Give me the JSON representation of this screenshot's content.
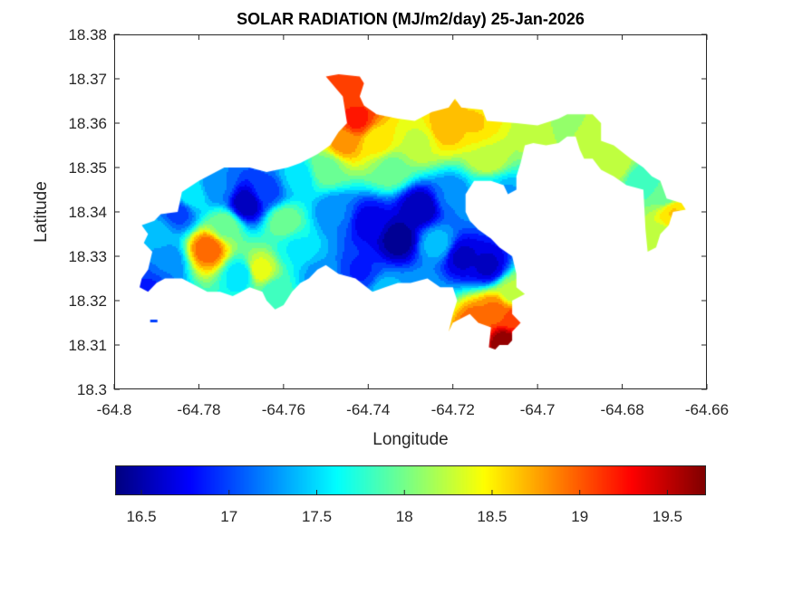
{
  "chart_data": {
    "type": "heatmap",
    "subtype": "filled-contour-map",
    "title": "SOLAR RADIATION (MJ/m2/day) 25-Jan-2026",
    "xlabel": "Longitude",
    "ylabel": "Latitude",
    "xlim": [
      -64.8,
      -64.66
    ],
    "ylim": [
      18.3,
      18.38
    ],
    "xticks": [
      -64.8,
      -64.78,
      -64.76,
      -64.74,
      -64.72,
      -64.7,
      -64.68,
      -64.66
    ],
    "xtick_labels": [
      "-64.8",
      "-64.78",
      "-64.76",
      "-64.74",
      "-64.72",
      "-64.7",
      "-64.68",
      "-64.66"
    ],
    "yticks": [
      18.3,
      18.31,
      18.32,
      18.33,
      18.34,
      18.35,
      18.36,
      18.37,
      18.38
    ],
    "ytick_labels": [
      "18.3",
      "18.31",
      "18.32",
      "18.33",
      "18.34",
      "18.35",
      "18.36",
      "18.37",
      "18.38"
    ],
    "grid": false,
    "colormap": "jet",
    "colorbar": {
      "location": "bottom",
      "clim": [
        16.35,
        19.72
      ],
      "ticks": [
        16.5,
        17,
        17.5,
        18,
        18.5,
        19,
        19.5
      ],
      "tick_labels": [
        "16.5",
        "17",
        "17.5",
        "18",
        "18.5",
        "19",
        "19.5"
      ]
    },
    "value_range_observed": [
      16.4,
      19.7
    ],
    "samples": [
      {
        "lon": -64.79,
        "lat": 18.335,
        "value": 17.4
      },
      {
        "lon": -64.785,
        "lat": 18.34,
        "value": 17.0
      },
      {
        "lon": -64.788,
        "lat": 18.329,
        "value": 17.2
      },
      {
        "lon": -64.792,
        "lat": 18.323,
        "value": 16.9
      },
      {
        "lon": -64.778,
        "lat": 18.332,
        "value": 19.0
      },
      {
        "lon": -64.774,
        "lat": 18.337,
        "value": 18.0
      },
      {
        "lon": -64.782,
        "lat": 18.344,
        "value": 17.6
      },
      {
        "lon": -64.776,
        "lat": 18.346,
        "value": 17.2
      },
      {
        "lon": -64.769,
        "lat": 18.342,
        "value": 16.5
      },
      {
        "lon": -64.764,
        "lat": 18.345,
        "value": 17.0
      },
      {
        "lon": -64.77,
        "lat": 18.326,
        "value": 17.5
      },
      {
        "lon": -64.766,
        "lat": 18.327,
        "value": 18.4
      },
      {
        "lon": -64.762,
        "lat": 18.322,
        "value": 17.8
      },
      {
        "lon": -64.76,
        "lat": 18.338,
        "value": 18.0
      },
      {
        "lon": -64.757,
        "lat": 18.332,
        "value": 17.6
      },
      {
        "lon": -64.752,
        "lat": 18.326,
        "value": 17.3
      },
      {
        "lon": -64.757,
        "lat": 18.348,
        "value": 17.5
      },
      {
        "lon": -64.75,
        "lat": 18.35,
        "value": 18.0
      },
      {
        "lon": -64.746,
        "lat": 18.356,
        "value": 18.8
      },
      {
        "lon": -64.743,
        "lat": 18.361,
        "value": 19.2
      },
      {
        "lon": -64.744,
        "lat": 18.368,
        "value": 19.1
      },
      {
        "lon": -64.738,
        "lat": 18.356,
        "value": 18.5
      },
      {
        "lon": -64.735,
        "lat": 18.35,
        "value": 18.0
      },
      {
        "lon": -64.748,
        "lat": 18.34,
        "value": 17.2
      },
      {
        "lon": -64.74,
        "lat": 18.338,
        "value": 16.7
      },
      {
        "lon": -64.733,
        "lat": 18.334,
        "value": 16.4
      },
      {
        "lon": -64.728,
        "lat": 18.341,
        "value": 16.5
      },
      {
        "lon": -64.724,
        "lat": 18.333,
        "value": 17.4
      },
      {
        "lon": -64.718,
        "lat": 18.33,
        "value": 16.6
      },
      {
        "lon": -64.712,
        "lat": 18.328,
        "value": 16.6
      },
      {
        "lon": -64.742,
        "lat": 18.327,
        "value": 16.9
      },
      {
        "lon": -64.736,
        "lat": 18.322,
        "value": 17.4
      },
      {
        "lon": -64.728,
        "lat": 18.322,
        "value": 17.3
      },
      {
        "lon": -64.72,
        "lat": 18.344,
        "value": 17.2
      },
      {
        "lon": -64.728,
        "lat": 18.356,
        "value": 18.3
      },
      {
        "lon": -64.722,
        "lat": 18.359,
        "value": 18.7
      },
      {
        "lon": -64.715,
        "lat": 18.36,
        "value": 18.6
      },
      {
        "lon": -64.712,
        "lat": 18.352,
        "value": 18.3
      },
      {
        "lon": -64.712,
        "lat": 18.345,
        "value": 17.6
      },
      {
        "lon": -64.708,
        "lat": 18.344,
        "value": 17.3
      },
      {
        "lon": -64.706,
        "lat": 18.322,
        "value": 18.2
      },
      {
        "lon": -64.71,
        "lat": 18.318,
        "value": 18.9
      },
      {
        "lon": -64.714,
        "lat": 18.315,
        "value": 19.0
      },
      {
        "lon": -64.706,
        "lat": 18.316,
        "value": 19.1
      },
      {
        "lon": -64.708,
        "lat": 18.311,
        "value": 19.7
      },
      {
        "lon": -64.703,
        "lat": 18.313,
        "value": 19.3
      },
      {
        "lon": -64.7,
        "lat": 18.359,
        "value": 18.3
      },
      {
        "lon": -64.694,
        "lat": 18.36,
        "value": 18.1
      },
      {
        "lon": -64.688,
        "lat": 18.356,
        "value": 18.3
      },
      {
        "lon": -64.682,
        "lat": 18.351,
        "value": 18.3
      },
      {
        "lon": -64.676,
        "lat": 18.347,
        "value": 17.8
      },
      {
        "lon": -64.67,
        "lat": 18.344,
        "value": 17.9
      },
      {
        "lon": -64.668,
        "lat": 18.34,
        "value": 18.6
      },
      {
        "lon": -64.671,
        "lat": 18.334,
        "value": 18.2
      }
    ]
  }
}
